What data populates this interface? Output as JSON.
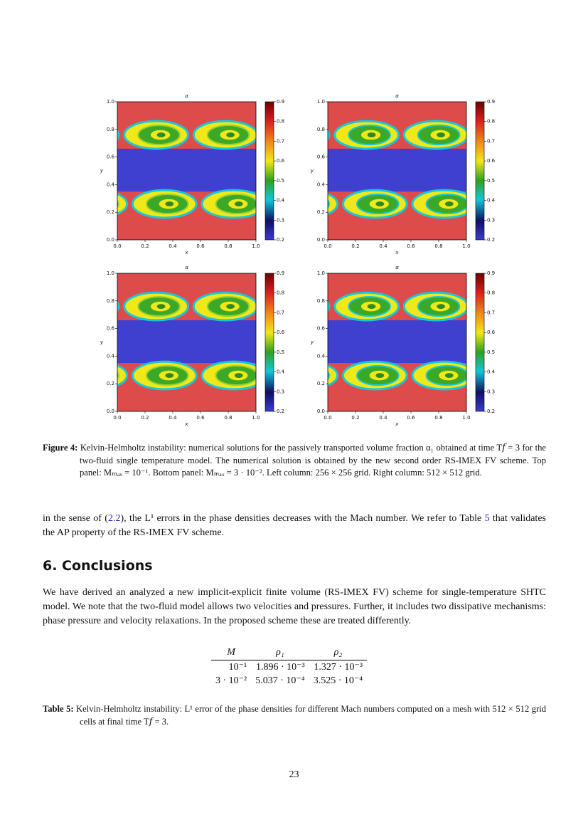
{
  "figure": {
    "title": "α",
    "x_label": "x",
    "y_label": "y",
    "x_ticks": [
      "0.0",
      "0.2",
      "0.4",
      "0.6",
      "0.8",
      "1.0"
    ],
    "y_ticks": [
      "0.0",
      "0.2",
      "0.4",
      "0.6",
      "0.8",
      "1.0"
    ],
    "colorbar_ticks": [
      "0.2",
      "0.3",
      "0.4",
      "0.5",
      "0.6",
      "0.7",
      "0.8",
      "0.9"
    ],
    "caption": {
      "label": "Figure 4:",
      "text": "Kelvin-Helmholtz instability: numerical solutions for the passively transported volume fraction α₁ obtained at time T𝑓 = 3 for the two-fluid single temperature model. The numerical solution is obtained by the new second order RS-IMEX FV scheme. Top panel: Mₘₐₓ = 10⁻¹. Bottom panel: Mₘₐₓ = 3 · 10⁻². Left column: 256 × 256 grid. Right column: 512 × 512 grid."
    }
  },
  "paragraph": {
    "parts": [
      "in the sense of (",
      "2.2",
      "), the L¹ errors in the phase densities decreases with the Mach number. We refer to Table ",
      "5",
      " that validates the AP property of the RS-IMEX FV scheme."
    ]
  },
  "section": {
    "title": "6. Conclusions",
    "paragraph": "We have derived an analyzed a new implicit-explicit finite volume (RS-IMEX FV) scheme for single-temperature SHTC model. We note that the two-fluid model allows two velocities and pressures. Further, it includes two dissipative mechanisms: phase pressure and velocity relaxations. In the proposed scheme these are treated differently."
  },
  "table": {
    "header": [
      "M",
      "ρ₁",
      "ρ₂"
    ],
    "rows": [
      [
        "10⁻¹",
        "1.896 · 10⁻³",
        "1.327 · 10⁻³"
      ],
      [
        "3 · 10⁻²",
        "5.037 · 10⁻⁴",
        "3.525 · 10⁻⁴"
      ]
    ],
    "caption": {
      "label": "Table 5:",
      "text": "Kelvin-Helmholtz instability: L¹ error of the phase densities for different Mach numbers computed on a mesh with 512 × 512 grid cells at final time T𝑓 = 3."
    }
  },
  "page_number": "23"
}
